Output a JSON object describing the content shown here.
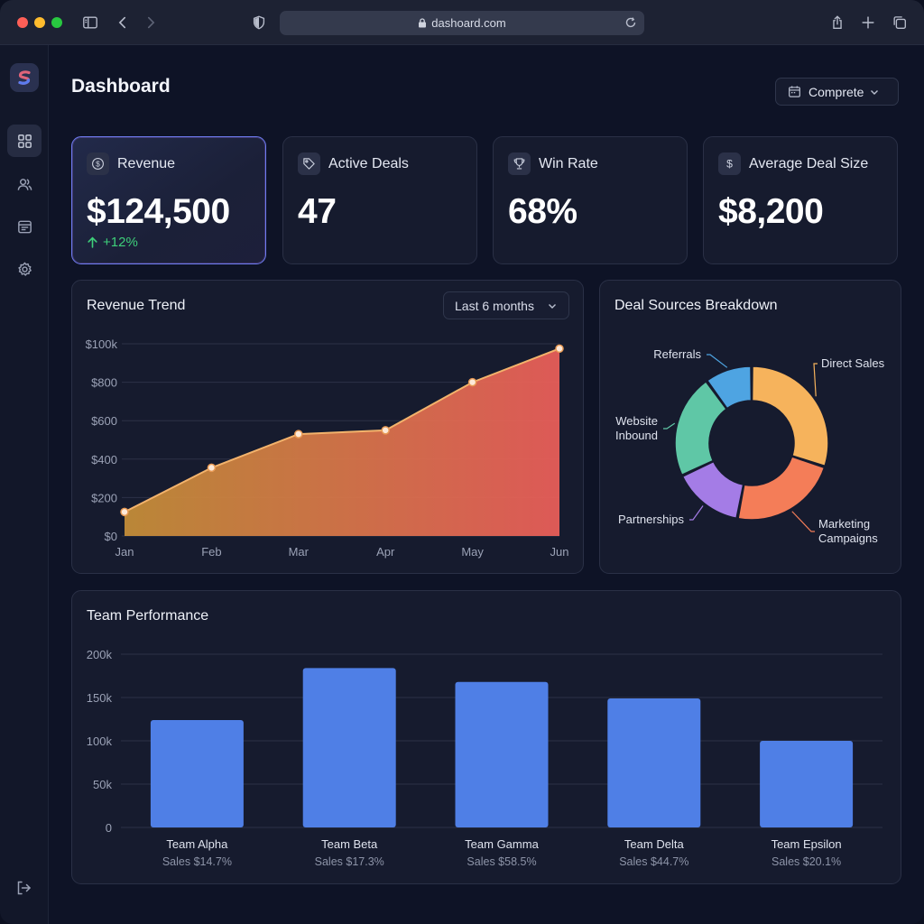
{
  "browser": {
    "url": "dashoard.com",
    "icons": [
      "sidebar-toggle-icon",
      "back-icon",
      "forward-icon",
      "shield-icon",
      "lock-icon",
      "reload-icon",
      "share-icon",
      "new-tab-icon",
      "tabs-icon"
    ]
  },
  "header": {
    "title": "Dashboard",
    "date_filter": "Comprete"
  },
  "sidebar": {
    "items": [
      {
        "icon": "dashboard-icon",
        "active": true
      },
      {
        "icon": "users-icon",
        "active": false
      },
      {
        "icon": "reports-icon",
        "active": false
      },
      {
        "icon": "gear-icon",
        "active": false
      }
    ],
    "footer_icon": "logout-icon"
  },
  "kpis": [
    {
      "label": "Revenue",
      "value": "$124,500",
      "delta": "+12%",
      "icon": "dollar-icon"
    },
    {
      "label": "Active Deals",
      "value": "47",
      "icon": "tag-icon"
    },
    {
      "label": "Win Rate",
      "value": "68%",
      "icon": "trophy-icon"
    },
    {
      "label": "Average Deal Size",
      "value": "$8,200",
      "icon": "dollar-icon"
    }
  ],
  "revenue_trend": {
    "title": "Revenue Trend",
    "range": "Last 6 months"
  },
  "deal_sources": {
    "title": "Deal Sources Breakdown"
  },
  "team_performance": {
    "title": "Team Performance"
  },
  "colors": {
    "accent_blue": "#4f7fe6",
    "positive": "#3ecf7a",
    "area_start": "#c89038",
    "area_end": "#ee5f5a"
  },
  "chart_data": [
    {
      "type": "area",
      "title": "Revenue Trend",
      "categories": [
        "Jan",
        "Feb",
        "Mar",
        "Apr",
        "May",
        "Jun"
      ],
      "values": [
        125,
        355,
        530,
        550,
        800,
        975
      ],
      "yticks": [
        "$0",
        "$200",
        "$400",
        "$600",
        "$800",
        "$100k"
      ],
      "ylim": [
        0,
        1000
      ],
      "grid": true
    },
    {
      "type": "pie",
      "title": "Deal Sources Breakdown",
      "labels": [
        "Direct Sales",
        "Marketing Campaigns",
        "Partnerships",
        "Website Inbound",
        "Referrals"
      ],
      "display_labels": [
        [
          "Direct Sales"
        ],
        [
          "Marketing",
          "Campaigns"
        ],
        [
          "Partnerships"
        ],
        [
          "Website",
          "Inbound"
        ],
        [
          "Referrals"
        ]
      ],
      "values": [
        30,
        23,
        15,
        22,
        10
      ],
      "colors": [
        "#f6b35c",
        "#f47d58",
        "#a47ce6",
        "#5fc7a6",
        "#4ea4e2"
      ]
    },
    {
      "type": "bar",
      "title": "Team Performance",
      "categories": [
        "Team Alpha",
        "Team Beta",
        "Team Gamma",
        "Team Delta",
        "Team Epsilon"
      ],
      "subtitles": [
        "Sales $14.7%",
        "Sales $17.3%",
        "Sales $58.5%",
        "Sales $44.7%",
        "Sales $20.1%"
      ],
      "values": [
        124000,
        184000,
        168000,
        149000,
        100000
      ],
      "yticks": [
        "0",
        "50k",
        "100k",
        "150k",
        "200k"
      ],
      "ylim": [
        0,
        200000
      ],
      "grid": true
    }
  ]
}
